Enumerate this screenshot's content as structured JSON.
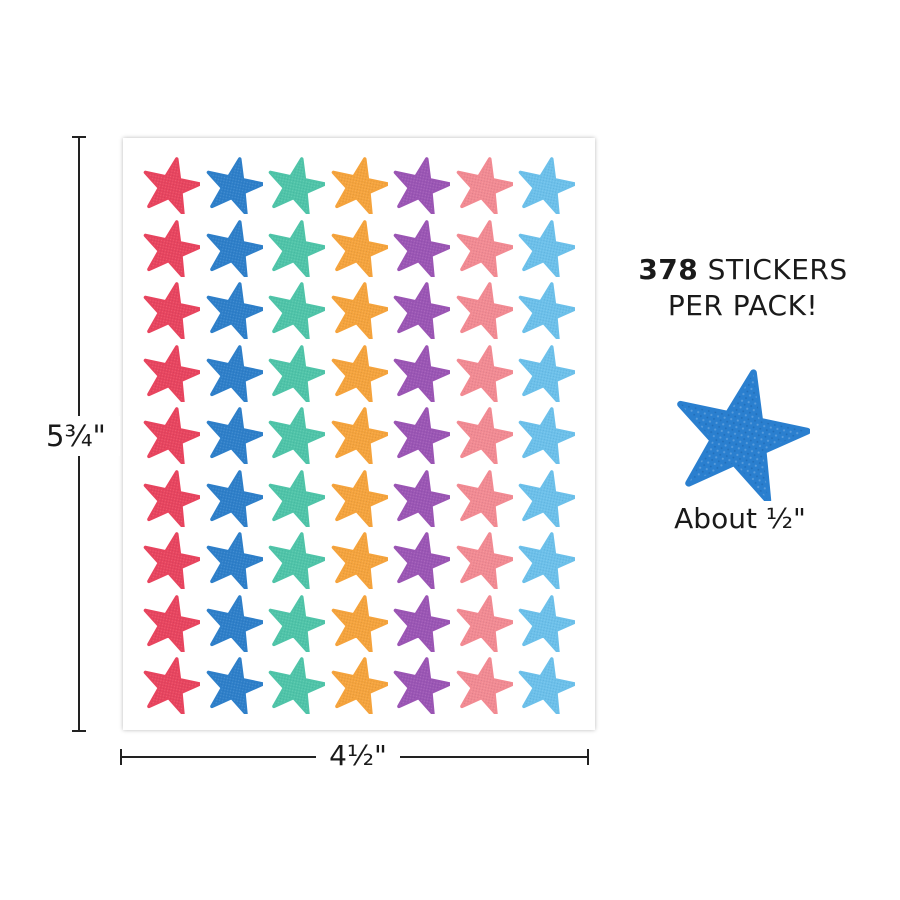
{
  "dimensions": {
    "height_label": "5¾\"",
    "width_label": "4½\""
  },
  "promo": {
    "count": "378",
    "line1_rest": " STICKERS",
    "line2": "PER PACK!"
  },
  "sample": {
    "caption": "About ½\"",
    "icon": "star-icon",
    "color": "#2a7fcf"
  },
  "sheet": {
    "rows": 9,
    "column_colors": [
      "#e8445e",
      "#2e7fc9",
      "#4fc4a8",
      "#f5a33c",
      "#9b55b4",
      "#f28a92",
      "#6cc0ea"
    ]
  }
}
